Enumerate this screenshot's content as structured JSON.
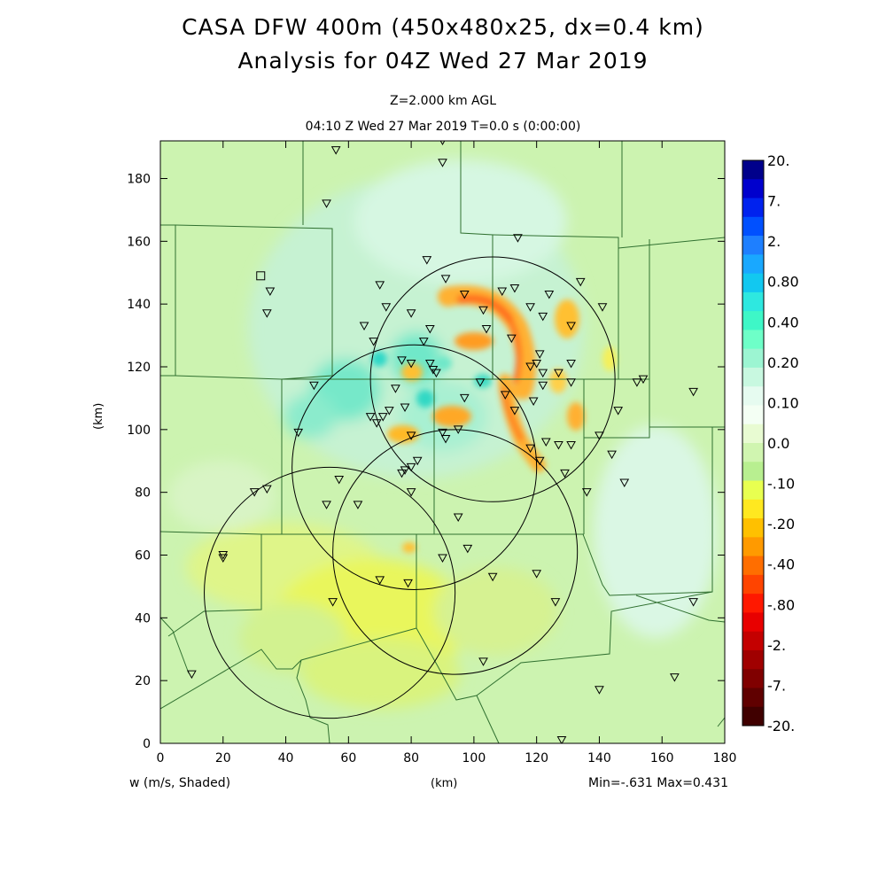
{
  "title_line1": "CASA DFW 400m (450x480x25, dx=0.4 km)",
  "title_line2": "Analysis for 04Z Wed 27 Mar 2019",
  "level_label": "Z=2.000 km AGL",
  "time_label": "04:10 Z Wed 27 Mar 2019    T=0.0 s (0:00:00)",
  "field_label": "w (m/s, Shaded)",
  "x_axis_label": "(km)",
  "y_axis_label": "(km)",
  "minmax_label": "Min=-.631 Max=0.431",
  "x_ticks": [
    "0",
    "20",
    "40",
    "60",
    "80",
    "100",
    "120",
    "140",
    "160",
    "180"
  ],
  "y_ticks": [
    "0",
    "20",
    "40",
    "60",
    "80",
    "100",
    "120",
    "140",
    "160",
    "180"
  ],
  "colorbar": {
    "labels": [
      "20.",
      "7.",
      "2.",
      "0.80",
      "0.40",
      "0.20",
      "0.10",
      "0.0",
      "-.10",
      "-.20",
      "-.40",
      "-.80",
      "-2.",
      "-7.",
      "-20."
    ],
    "colors": [
      "#00008b",
      "#0000cd",
      "#0022ee",
      "#0050ff",
      "#1e7fff",
      "#19a8ff",
      "#12c8f0",
      "#2ee8e0",
      "#3ef7c7",
      "#6effc8",
      "#9cf5d2",
      "#c8f8e0",
      "#e6fbf0",
      "#f4fff4",
      "#e8fbd2",
      "#d0f5b0",
      "#b8ef90",
      "#e8ff50",
      "#ffe820",
      "#ffc000",
      "#ff9a00",
      "#ff6e00",
      "#ff4400",
      "#ff1800",
      "#e80000",
      "#c40000",
      "#a00000",
      "#800000",
      "#600000",
      "#400000"
    ]
  },
  "map": {
    "field_colors": {
      "background": "#ccf3b0",
      "positive": "#bff0cc",
      "cyan": "#4de6c7",
      "yellow": "#e6f55a",
      "orange": "#ff9933",
      "red": "#ff4d1a"
    },
    "radar_rings_km": [
      {
        "cx": 106,
        "cy": 116,
        "r": 39
      },
      {
        "cx": 81,
        "cy": 88,
        "r": 39
      },
      {
        "cx": 94,
        "cy": 61,
        "r": 39
      },
      {
        "cx": 54,
        "cy": 48,
        "r": 40
      }
    ],
    "station_square_km": [
      32,
      149
    ],
    "stations_km": [
      [
        56,
        189
      ],
      [
        90,
        192
      ],
      [
        90,
        185
      ],
      [
        53,
        172
      ],
      [
        114,
        161
      ],
      [
        85,
        154
      ],
      [
        91,
        148
      ],
      [
        134,
        147
      ],
      [
        70,
        146
      ],
      [
        35,
        144
      ],
      [
        124,
        143
      ],
      [
        113,
        145
      ],
      [
        109,
        144
      ],
      [
        97,
        143
      ],
      [
        141,
        139
      ],
      [
        72,
        139
      ],
      [
        118,
        139
      ],
      [
        103,
        138
      ],
      [
        80,
        137
      ],
      [
        34,
        137
      ],
      [
        122,
        136
      ],
      [
        65,
        133
      ],
      [
        86,
        132
      ],
      [
        131,
        133
      ],
      [
        104,
        132
      ],
      [
        112,
        129
      ],
      [
        68,
        128
      ],
      [
        84,
        128
      ],
      [
        121,
        124
      ],
      [
        77,
        122
      ],
      [
        80,
        121
      ],
      [
        86,
        121
      ],
      [
        120,
        121
      ],
      [
        118,
        120
      ],
      [
        87,
        119
      ],
      [
        131,
        121
      ],
      [
        127,
        118
      ],
      [
        122,
        118
      ],
      [
        88,
        118
      ],
      [
        49,
        114
      ],
      [
        102,
        115
      ],
      [
        122,
        114
      ],
      [
        131,
        115
      ],
      [
        154,
        116
      ],
      [
        152,
        115
      ],
      [
        170,
        112
      ],
      [
        75,
        113
      ],
      [
        110,
        111
      ],
      [
        97,
        110
      ],
      [
        113,
        106
      ],
      [
        119,
        109
      ],
      [
        146,
        106
      ],
      [
        78,
        107
      ],
      [
        73,
        106
      ],
      [
        71,
        104
      ],
      [
        67,
        104
      ],
      [
        69,
        102
      ],
      [
        44,
        99
      ],
      [
        90,
        99
      ],
      [
        95,
        100
      ],
      [
        140,
        98
      ],
      [
        91,
        97
      ],
      [
        123,
        96
      ],
      [
        127,
        95
      ],
      [
        80,
        98
      ],
      [
        131,
        95
      ],
      [
        118,
        94
      ],
      [
        144,
        92
      ],
      [
        121,
        90
      ],
      [
        82,
        90
      ],
      [
        80,
        88
      ],
      [
        78,
        87
      ],
      [
        77,
        86
      ],
      [
        57,
        84
      ],
      [
        129,
        86
      ],
      [
        148,
        83
      ],
      [
        34,
        81
      ],
      [
        30,
        80
      ],
      [
        80,
        80
      ],
      [
        136,
        80
      ],
      [
        53,
        76
      ],
      [
        63,
        76
      ],
      [
        95,
        72
      ],
      [
        20,
        60
      ],
      [
        20,
        59
      ],
      [
        90,
        59
      ],
      [
        98,
        62
      ],
      [
        120,
        54
      ],
      [
        106,
        53
      ],
      [
        70,
        52
      ],
      [
        79,
        51
      ],
      [
        126,
        45
      ],
      [
        170,
        45
      ],
      [
        55,
        45
      ],
      [
        103,
        26
      ],
      [
        10,
        22
      ],
      [
        164,
        21
      ],
      [
        140,
        17
      ],
      [
        128,
        1
      ]
    ]
  }
}
